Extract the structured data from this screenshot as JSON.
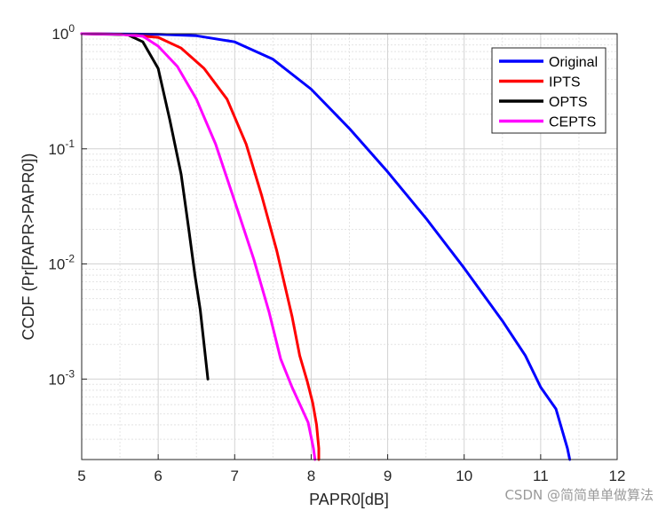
{
  "chart_data": {
    "type": "line",
    "title": "",
    "xlabel": "PAPR0[dB]",
    "ylabel": "CCDF (Pr[PAPR>PAPR0])",
    "xlim": [
      5,
      12
    ],
    "ylim": [
      0.0002,
      1
    ],
    "yscale": "log",
    "grid": true,
    "minor_grid": true,
    "xticks": [
      5,
      6,
      7,
      8,
      9,
      10,
      11,
      12
    ],
    "xtick_labels": [
      "5",
      "6",
      "7",
      "8",
      "9",
      "10",
      "11",
      "12"
    ],
    "yticks": [
      0.001,
      0.01,
      0.1,
      1
    ],
    "ytick_labels": [
      {
        "base": "10",
        "exp": "-3"
      },
      {
        "base": "10",
        "exp": "-2"
      },
      {
        "base": "10",
        "exp": "-1"
      },
      {
        "base": "10",
        "exp": "0"
      }
    ],
    "legend_position": "top-right",
    "series": [
      {
        "name": "Original",
        "color": "#0000ff",
        "x": [
          5.0,
          6.0,
          6.5,
          7.0,
          7.5,
          8.0,
          8.5,
          9.0,
          9.5,
          10.0,
          10.5,
          10.8,
          11.0,
          11.2,
          11.35,
          11.38
        ],
        "y": [
          1.0,
          0.99,
          0.96,
          0.85,
          0.6,
          0.33,
          0.15,
          0.063,
          0.025,
          0.0092,
          0.0032,
          0.0016,
          0.00085,
          0.00055,
          0.00025,
          0.0002
        ]
      },
      {
        "name": "IPTS",
        "color": "#ff0000",
        "x": [
          5.0,
          5.5,
          6.0,
          6.3,
          6.6,
          6.9,
          7.15,
          7.35,
          7.55,
          7.75,
          7.85,
          7.95,
          8.02,
          8.07,
          8.1,
          8.1
        ],
        "y": [
          1.0,
          0.99,
          0.93,
          0.75,
          0.5,
          0.27,
          0.11,
          0.04,
          0.013,
          0.0035,
          0.0016,
          0.00095,
          0.00062,
          0.0004,
          0.00025,
          0.0002
        ]
      },
      {
        "name": "OPTS",
        "color": "#000000",
        "x": [
          5.0,
          5.6,
          5.8,
          6.0,
          6.15,
          6.3,
          6.4,
          6.48,
          6.55,
          6.6,
          6.65
        ],
        "y": [
          1.0,
          0.98,
          0.85,
          0.5,
          0.18,
          0.06,
          0.02,
          0.008,
          0.004,
          0.002,
          0.001
        ]
      },
      {
        "name": "CEPTS",
        "color": "#ff00ff",
        "x": [
          5.0,
          5.5,
          5.8,
          6.0,
          6.25,
          6.5,
          6.75,
          7.0,
          7.25,
          7.45,
          7.6,
          7.75,
          7.88,
          7.96,
          8.03,
          8.05
        ],
        "y": [
          1.0,
          0.99,
          0.95,
          0.78,
          0.52,
          0.27,
          0.11,
          0.035,
          0.011,
          0.0038,
          0.0015,
          0.00085,
          0.00055,
          0.00042,
          0.00025,
          0.0002
        ]
      }
    ]
  },
  "watermark": "CSDN @简简单单做算法"
}
